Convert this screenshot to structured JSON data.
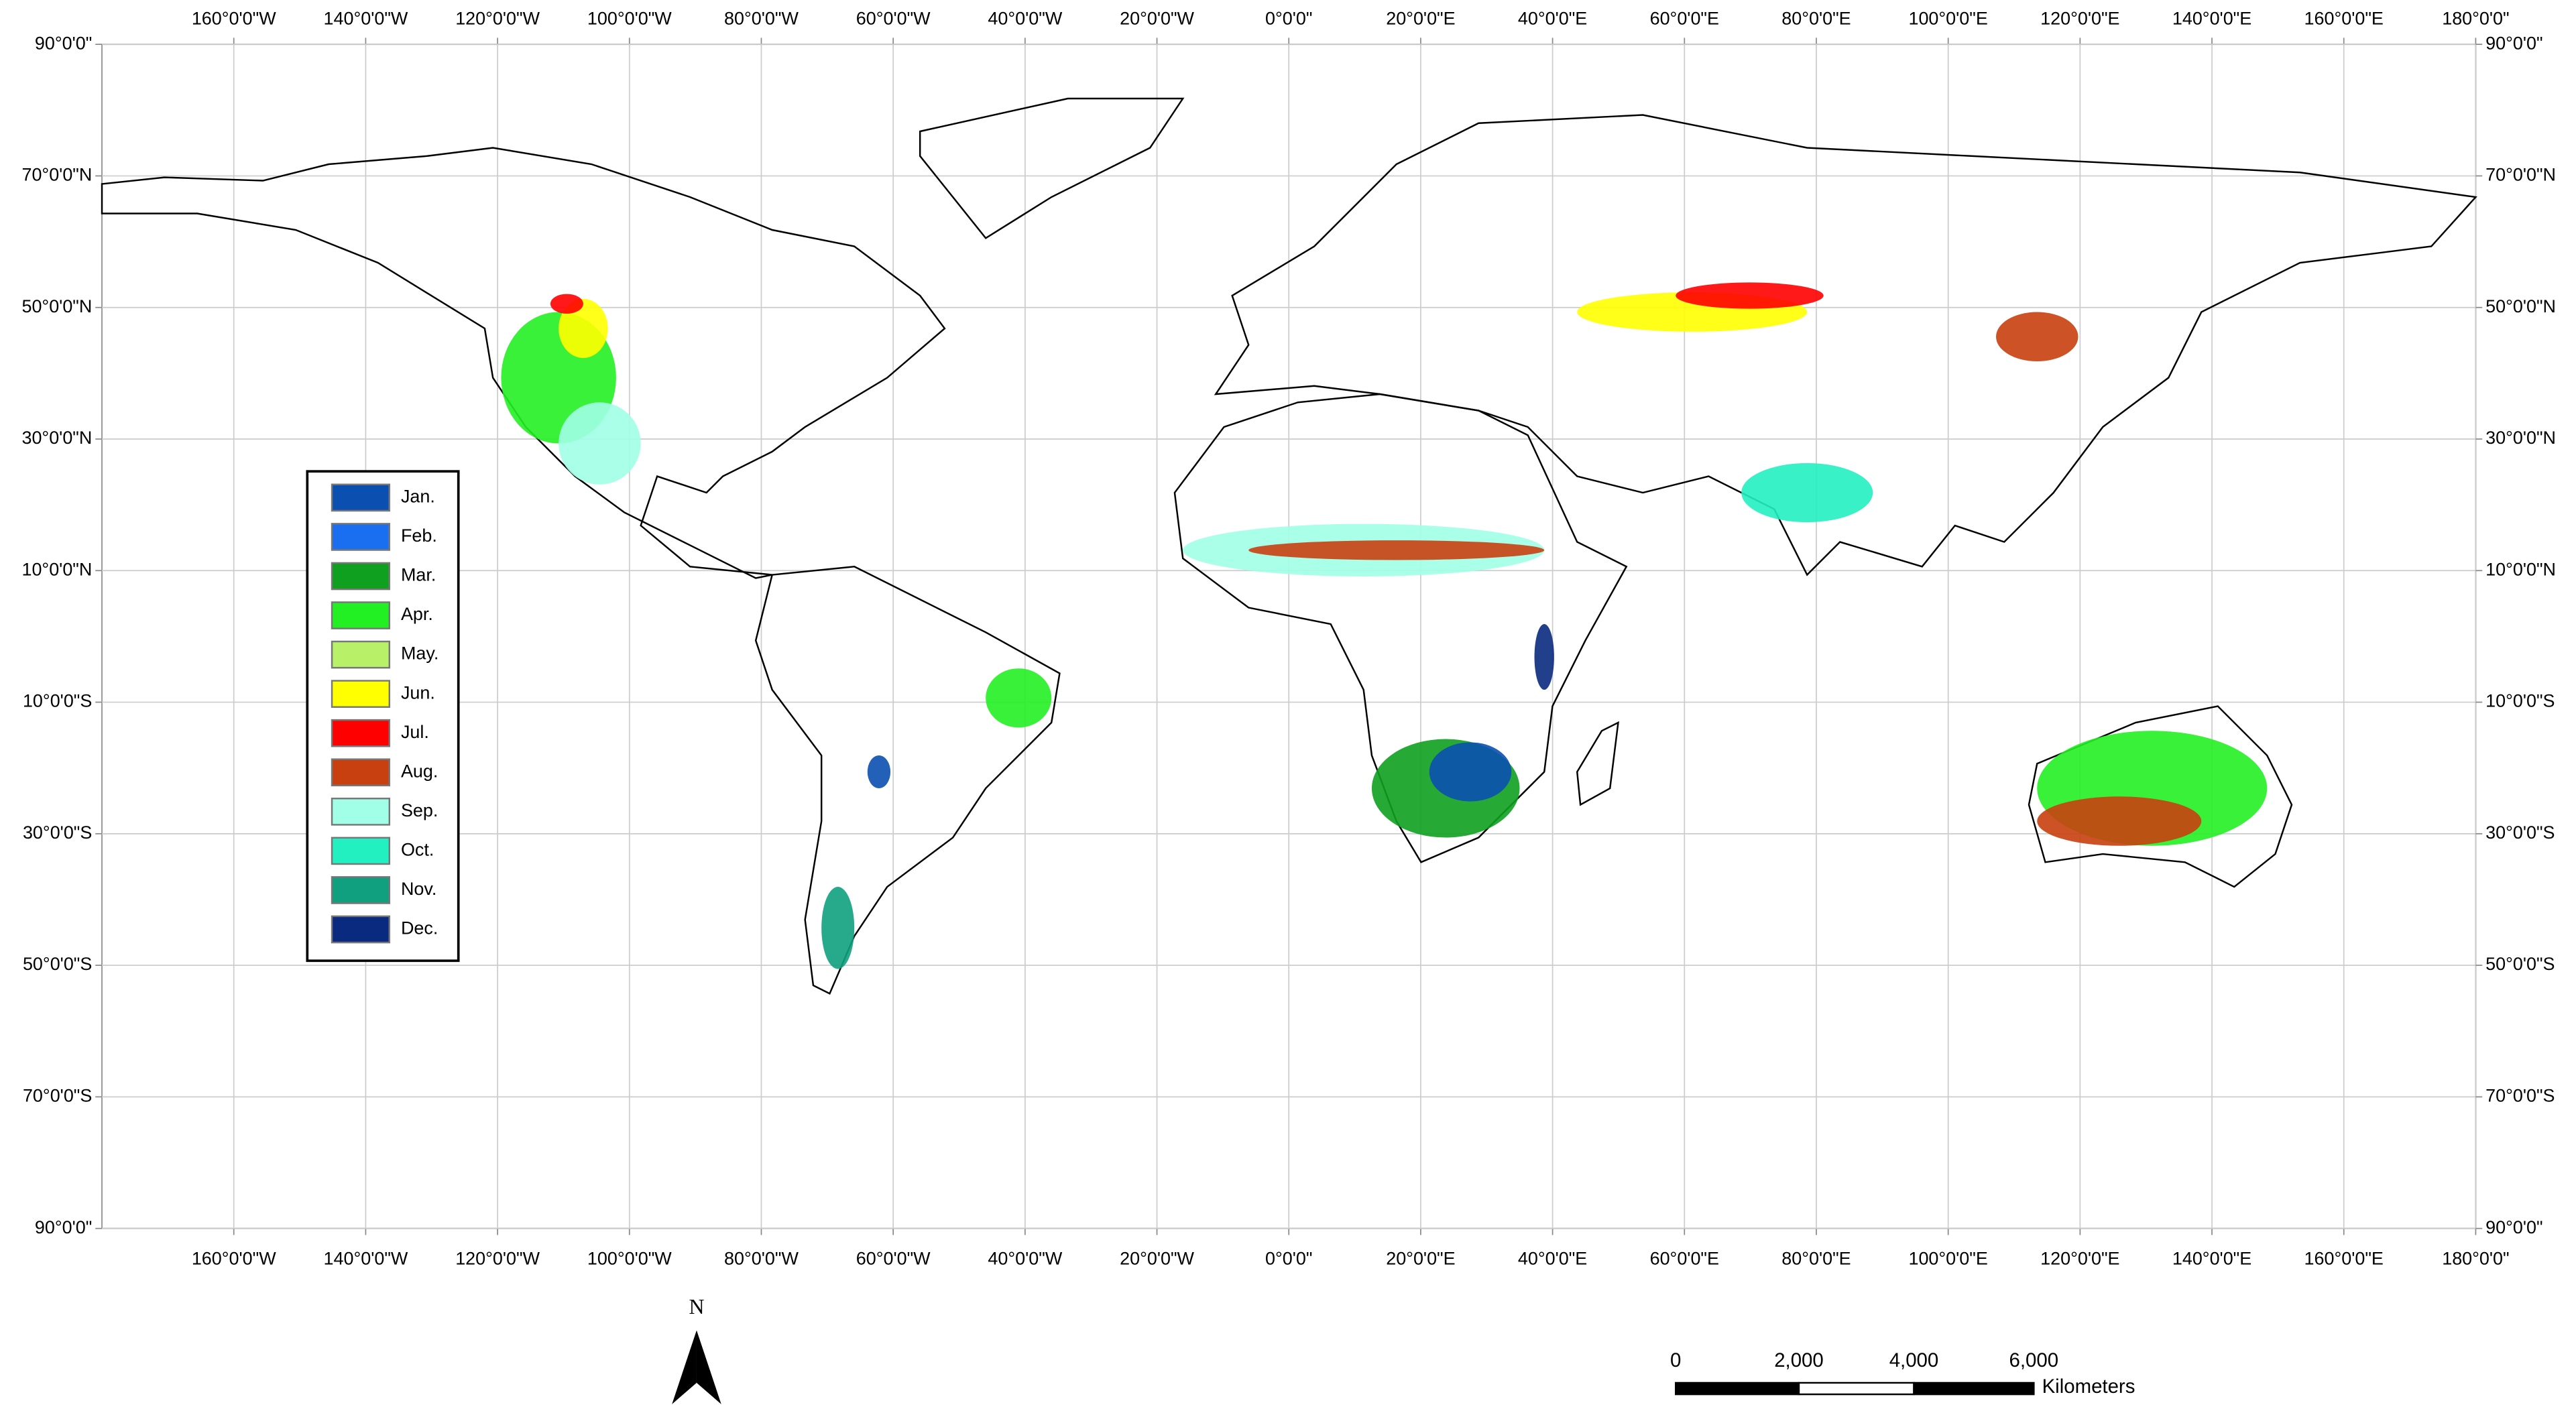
{
  "map": {
    "longitude_labels": [
      {
        "value": -160,
        "label": "160°0'0\"W"
      },
      {
        "value": -140,
        "label": "140°0'0\"W"
      },
      {
        "value": -120,
        "label": "120°0'0\"W"
      },
      {
        "value": -100,
        "label": "100°0'0\"W"
      },
      {
        "value": -80,
        "label": "80°0'0\"W"
      },
      {
        "value": -60,
        "label": "60°0'0\"W"
      },
      {
        "value": -40,
        "label": "40°0'0\"W"
      },
      {
        "value": -20,
        "label": "20°0'0\"W"
      },
      {
        "value": 0,
        "label": "0°0'0\""
      },
      {
        "value": 20,
        "label": "20°0'0\"E"
      },
      {
        "value": 40,
        "label": "40°0'0\"E"
      },
      {
        "value": 60,
        "label": "60°0'0\"E"
      },
      {
        "value": 80,
        "label": "80°0'0\"E"
      },
      {
        "value": 100,
        "label": "100°0'0\"E"
      },
      {
        "value": 120,
        "label": "120°0'0\"E"
      },
      {
        "value": 140,
        "label": "140°0'0\"E"
      },
      {
        "value": 160,
        "label": "160°0'0\"E"
      },
      {
        "value": 180,
        "label": "180°0'0\""
      }
    ],
    "latitude_labels": [
      {
        "value": 90,
        "label": "90°0'0\""
      },
      {
        "value": 70,
        "label": "70°0'0\"N"
      },
      {
        "value": 50,
        "label": "50°0'0\"N"
      },
      {
        "value": 30,
        "label": "30°0'0\"N"
      },
      {
        "value": 10,
        "label": "10°0'0\"N"
      },
      {
        "value": -10,
        "label": "10°0'0\"S"
      },
      {
        "value": -30,
        "label": "30°0'0\"S"
      },
      {
        "value": -50,
        "label": "50°0'0\"S"
      },
      {
        "value": -70,
        "label": "70°0'0\"S"
      },
      {
        "value": -90,
        "label": "90°0'0\""
      }
    ],
    "legend": [
      {
        "label": "Jan.",
        "color": "#0b50b0"
      },
      {
        "label": "Feb.",
        "color": "#1a6ef0"
      },
      {
        "label": "Mar.",
        "color": "#10a020"
      },
      {
        "label": "Apr.",
        "color": "#22f022"
      },
      {
        "label": "May.",
        "color": "#b8f068"
      },
      {
        "label": "Jun.",
        "color": "#ffff00"
      },
      {
        "label": "Jul.",
        "color": "#ff0000"
      },
      {
        "label": "Aug.",
        "color": "#c84010"
      },
      {
        "label": "Sep.",
        "color": "#a0ffe6"
      },
      {
        "label": "Oct.",
        "color": "#22f0c0"
      },
      {
        "label": "Nov.",
        "color": "#10a080"
      },
      {
        "label": "Dec.",
        "color": "#0a2a80"
      }
    ],
    "north_arrow": "N",
    "scale_bar": {
      "labels": [
        "0",
        "2,000",
        "4,000",
        "6,000"
      ],
      "unit": "Kilometers"
    }
  }
}
